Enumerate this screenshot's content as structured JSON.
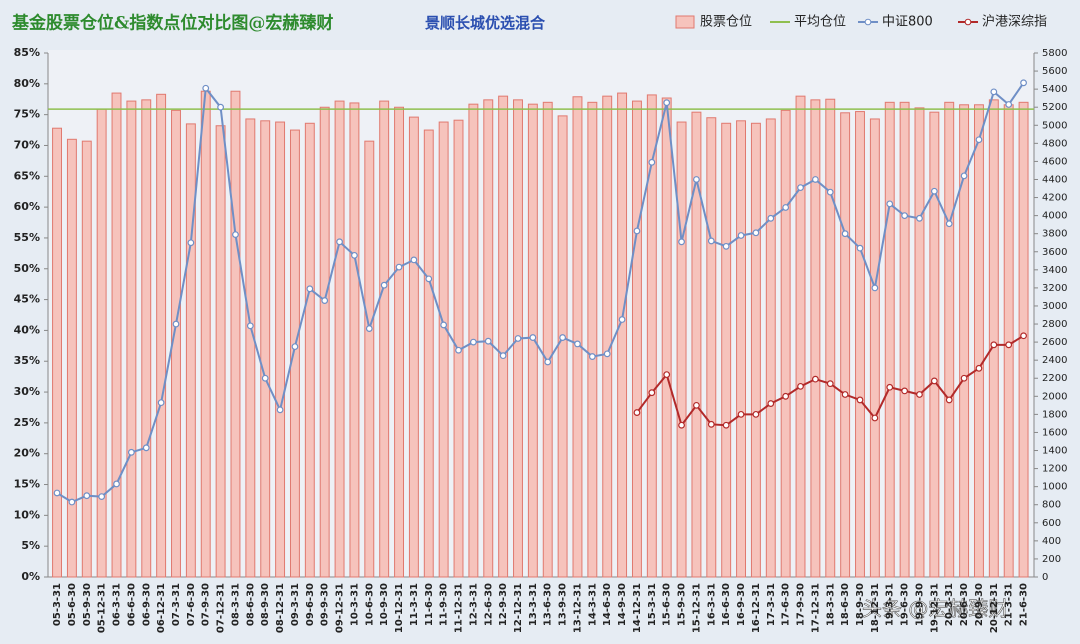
{
  "chart_data": {
    "type": "bar",
    "title": "基金股票仓位&指数点位对比图@宏赫臻财",
    "subtitle": "景顺长城优选混合",
    "watermark": "头条 @宏赫臻财",
    "categories": [
      "05-3-31",
      "05-6-30",
      "05-9-30",
      "05-12-31",
      "06-3-31",
      "06-6-30",
      "06-9-30",
      "06-12-31",
      "07-3-31",
      "07-6-30",
      "07-9-30",
      "07-12-31",
      "08-3-31",
      "08-6-30",
      "08-9-30",
      "08-12-31",
      "09-3-31",
      "09-6-30",
      "09-9-30",
      "09-12-31",
      "10-3-31",
      "10-6-30",
      "10-9-30",
      "10-12-31",
      "11-3-31",
      "11-6-30",
      "11-9-30",
      "11-12-31",
      "12-3-31",
      "12-6-30",
      "12-9-30",
      "12-12-31",
      "13-3-31",
      "13-6-30",
      "13-9-30",
      "13-12-31",
      "14-3-31",
      "14-6-30",
      "14-9-30",
      "14-12-31",
      "15-3-31",
      "15-6-30",
      "15-9-30",
      "15-12-31",
      "16-3-31",
      "16-6-30",
      "16-9-30",
      "16-12-31",
      "17-3-31",
      "17-6-30",
      "17-9-30",
      "17-12-31",
      "18-3-31",
      "18-6-30",
      "18-9-30",
      "18-12-31",
      "19-3-31",
      "19-6-30",
      "19-9-30",
      "19-12-31",
      "20-3-31",
      "20-6-30",
      "20-9-30",
      "20-12-31",
      "21-3-31",
      "21-6-30"
    ],
    "series": [
      {
        "name": "股票仓位",
        "type": "bar",
        "color": "#f6c3bc",
        "values": [
          72.8,
          71,
          70.7,
          75.9,
          78.5,
          77.2,
          77.4,
          78.3,
          75.7,
          73.5,
          78.8,
          73.2,
          78.8,
          74.3,
          74,
          73.8,
          72.5,
          73.6,
          76.2,
          77.2,
          76.9,
          70.7,
          77.2,
          76.2,
          74.6,
          72.5,
          73.8,
          74.1,
          76.7,
          77.4,
          78,
          77.4,
          76.7,
          77,
          74.8,
          77.9,
          77,
          78,
          78.5,
          77.2,
          78.2,
          77.7,
          73.8,
          75.4,
          74.5,
          73.6,
          74,
          73.6,
          74.3,
          75.7,
          78,
          77.4,
          77.5,
          75.3,
          75.5,
          74.3,
          77,
          77,
          76.1,
          75.4,
          77,
          76.6,
          76.6,
          77.4,
          76.6,
          77
        ]
      },
      {
        "name": "中证800",
        "type": "line",
        "axis": "y2",
        "color": "#6f8fc6",
        "values": [
          930,
          830,
          900,
          890,
          1030,
          1380,
          1430,
          1930,
          2800,
          3700,
          5410,
          5200,
          3790,
          2780,
          2200,
          1850,
          2550,
          3190,
          3060,
          3710,
          3560,
          2750,
          3230,
          3430,
          3510,
          3300,
          2790,
          2510,
          2600,
          2610,
          2450,
          2640,
          2650,
          2380,
          2650,
          2580,
          2440,
          2470,
          2850,
          3830,
          4590,
          5250,
          3710,
          4400,
          3720,
          3660,
          3780,
          3810,
          3970,
          4090,
          4310,
          4400,
          4260,
          3800,
          3640,
          3200,
          4130,
          4000,
          3970,
          4270,
          3910,
          4440,
          4840,
          5370,
          5230,
          5470
        ]
      },
      {
        "name": "沪港深综指",
        "type": "line",
        "axis": "y2",
        "color": "#b22a2a",
        "values": [
          null,
          null,
          null,
          null,
          null,
          null,
          null,
          null,
          null,
          null,
          null,
          null,
          null,
          null,
          null,
          null,
          null,
          null,
          null,
          null,
          null,
          null,
          null,
          null,
          null,
          null,
          null,
          null,
          null,
          null,
          null,
          null,
          null,
          null,
          null,
          null,
          null,
          null,
          null,
          1820,
          2040,
          2240,
          1680,
          1900,
          1690,
          1680,
          1800,
          1800,
          1920,
          2000,
          2110,
          2190,
          2140,
          2020,
          1960,
          1760,
          2100,
          2060,
          2020,
          2170,
          1960,
          2200,
          2310,
          2570,
          2570,
          2670
        ]
      }
    ],
    "reference_lines": [
      {
        "name": "平均仓位",
        "value": 75.9,
        "color": "#8fbf4f"
      }
    ],
    "ylim": [
      0,
      85
    ],
    "yticks": [
      {
        "value": 0,
        "label": "0%"
      },
      {
        "value": 5,
        "label": "5%"
      },
      {
        "value": 10,
        "label": "10%"
      },
      {
        "value": 15,
        "label": "15%"
      },
      {
        "value": 20,
        "label": "20%"
      },
      {
        "value": 25,
        "label": "25%"
      },
      {
        "value": 30,
        "label": "30%"
      },
      {
        "value": 35,
        "label": "35%"
      },
      {
        "value": 40,
        "label": "40%"
      },
      {
        "value": 45,
        "label": "45%"
      },
      {
        "value": 50,
        "label": "50%"
      },
      {
        "value": 55,
        "label": "55%"
      },
      {
        "value": 60,
        "label": "60%"
      },
      {
        "value": 65,
        "label": "65%"
      },
      {
        "value": 70,
        "label": "70%"
      },
      {
        "value": 75,
        "label": "75%"
      },
      {
        "value": 80,
        "label": "80%"
      },
      {
        "value": 85,
        "label": "85%"
      }
    ],
    "y2lim": [
      0,
      5800
    ],
    "y2ticks": [
      0,
      200,
      400,
      600,
      800,
      1000,
      1200,
      1400,
      1600,
      1800,
      2000,
      2200,
      2400,
      2600,
      2800,
      3000,
      3200,
      3400,
      3600,
      3800,
      4000,
      4200,
      4400,
      4600,
      4800,
      5000,
      5200,
      5400,
      5600,
      5800
    ]
  }
}
